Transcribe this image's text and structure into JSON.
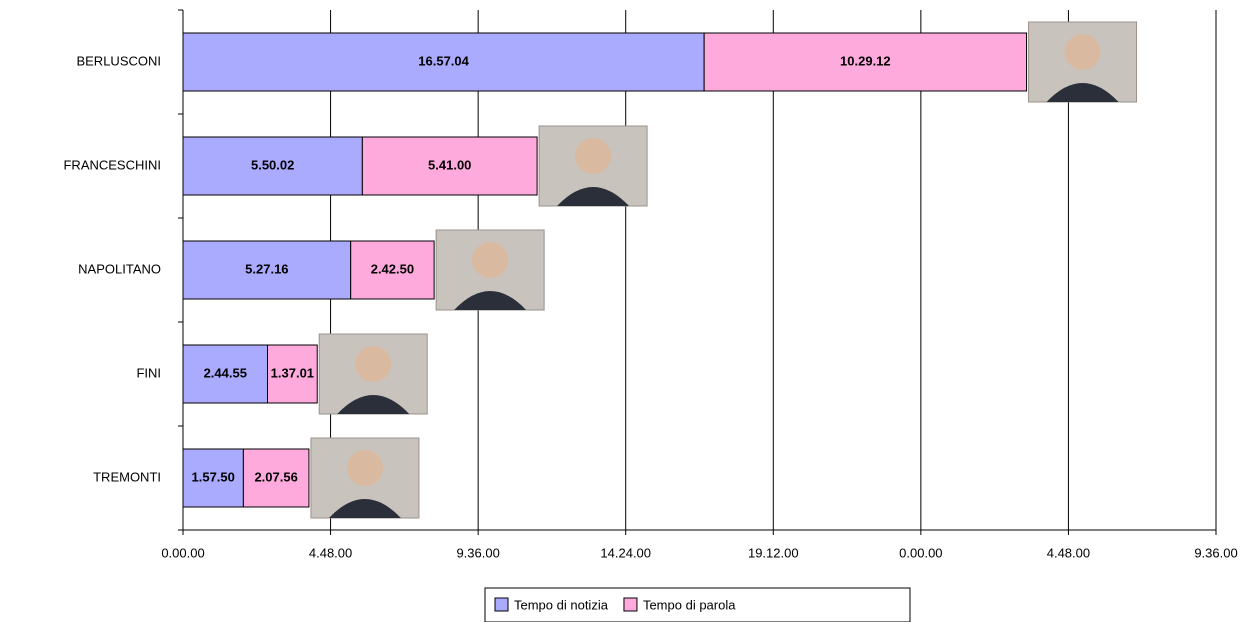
{
  "chart_data": {
    "type": "stacked-bar-horizontal",
    "categories": [
      "BERLUSCONI",
      "FRANCESCHINI",
      "NAPOLITANO",
      "FINI",
      "TREMONTI"
    ],
    "series": [
      {
        "name": "Tempo di notizia",
        "color": "#aaaaff",
        "values": [
          61024,
          21002,
          19636,
          9895,
          7070
        ],
        "value_labels": [
          "16.57.04",
          "5.50.02",
          "5.27.16",
          "2.44.55",
          "1.57.50"
        ]
      },
      {
        "name": "Tempo di parola",
        "color": "#ffaadd",
        "values": [
          37752,
          20460,
          9770,
          5821,
          7676
        ],
        "value_labels": [
          "10.29.12",
          "5.41.00",
          "2.42.50",
          "1.37.01",
          "2.07.56"
        ]
      }
    ],
    "xlim": [
      0,
      120960
    ],
    "xticks": [
      {
        "value": 0,
        "label": "0.00.00"
      },
      {
        "value": 17280,
        "label": "4.48.00"
      },
      {
        "value": 34560,
        "label": "9.36.00"
      },
      {
        "value": 51840,
        "label": "14.24.00"
      },
      {
        "value": 69120,
        "label": "19.12.00"
      },
      {
        "value": 86400,
        "label": "0.00.00"
      },
      {
        "value": 103680,
        "label": "4.48.00"
      },
      {
        "value": 120960,
        "label": "9.36.00"
      }
    ],
    "grid": true,
    "legend": "bottom"
  }
}
